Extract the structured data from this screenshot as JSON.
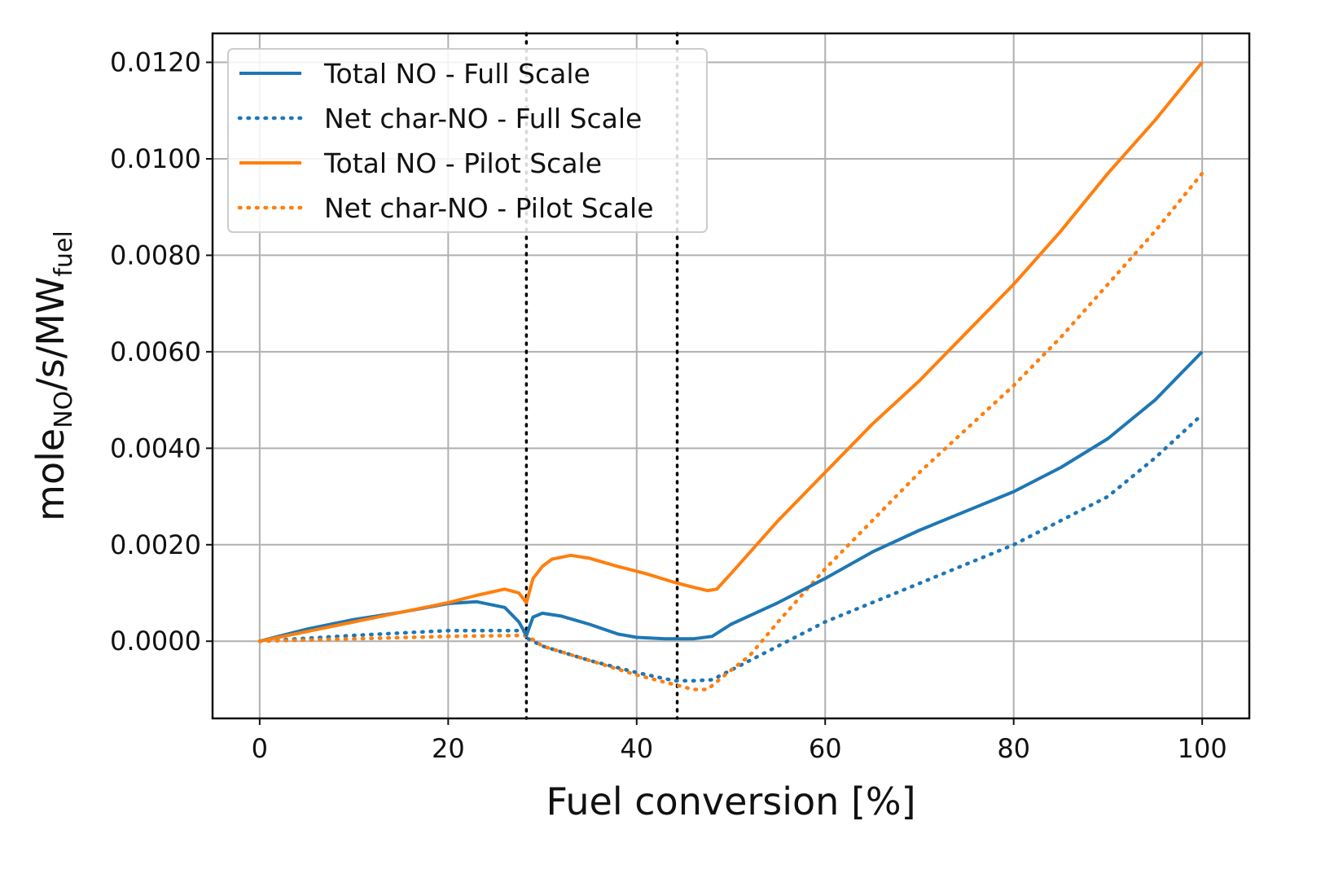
{
  "chart_data": {
    "type": "line",
    "title": "",
    "xlabel": "Fuel conversion [%]",
    "ylabel": {
      "base1": "mole",
      "sub1": "NO",
      "mid": "/s/MW",
      "sub2": "fuel"
    },
    "xlim": [
      -5,
      105
    ],
    "ylim": [
      -0.0016,
      0.0126
    ],
    "xticks": [
      0,
      20,
      40,
      60,
      80,
      100
    ],
    "xtick_labels": [
      "0",
      "20",
      "40",
      "60",
      "80",
      "100"
    ],
    "yticks": [
      0.0,
      0.002,
      0.004,
      0.006,
      0.008,
      0.01,
      0.012
    ],
    "ytick_labels": [
      "0.0000",
      "0.0020",
      "0.0040",
      "0.0060",
      "0.0080",
      "0.0100",
      "0.0120"
    ],
    "grid": true,
    "legend_position": "top-left",
    "vertical_markers": [
      28.3,
      44.3
    ],
    "colors": {
      "full": "#1f77b4",
      "pilot": "#ff7f0e",
      "marker": "#000000"
    },
    "series": [
      {
        "name": "Total NO - Full Scale",
        "style": "solid",
        "color": "#1f77b4",
        "x": [
          0,
          5,
          10,
          15,
          20,
          23,
          26,
          27.5,
          28.3,
          29,
          30,
          32,
          35,
          38,
          40,
          43,
          46,
          48,
          50,
          55,
          60,
          65,
          70,
          75,
          80,
          85,
          90,
          95,
          100
        ],
        "y": [
          0,
          0.00025,
          0.00045,
          0.0006,
          0.00078,
          0.00082,
          0.0007,
          0.0004,
          0.00012,
          0.0005,
          0.00058,
          0.00052,
          0.00035,
          0.00015,
          8e-05,
          5e-05,
          5e-05,
          0.0001,
          0.00035,
          0.0008,
          0.0013,
          0.00185,
          0.0023,
          0.0027,
          0.0031,
          0.0036,
          0.0042,
          0.005,
          0.006
        ]
      },
      {
        "name": "Net char-NO - Full Scale",
        "style": "dotted",
        "color": "#1f77b4",
        "x": [
          0,
          10,
          20,
          28,
          28.5,
          30,
          35,
          40,
          44,
          46,
          48,
          50,
          55,
          60,
          70,
          80,
          90,
          95,
          100
        ],
        "y": [
          0,
          0.00012,
          0.00022,
          0.00022,
          5e-05,
          -0.0001,
          -0.0004,
          -0.00065,
          -0.00082,
          -0.00082,
          -0.0008,
          -0.0006,
          -0.0001,
          0.0004,
          0.0012,
          0.002,
          0.003,
          0.0038,
          0.0047
        ]
      },
      {
        "name": "Total NO - Pilot Scale",
        "style": "solid",
        "color": "#ff7f0e",
        "x": [
          0,
          5,
          10,
          15,
          20,
          23,
          26,
          27.5,
          28.3,
          29,
          30,
          31,
          33,
          35,
          38,
          41,
          44,
          46,
          47.5,
          48.5,
          50,
          55,
          60,
          65,
          70,
          75,
          80,
          85,
          90,
          95,
          100
        ],
        "y": [
          0,
          0.0002,
          0.0004,
          0.0006,
          0.0008,
          0.00095,
          0.00108,
          0.001,
          0.0008,
          0.0013,
          0.00155,
          0.0017,
          0.00178,
          0.00172,
          0.00155,
          0.0014,
          0.00122,
          0.00112,
          0.00105,
          0.00108,
          0.0014,
          0.0025,
          0.0035,
          0.0045,
          0.0054,
          0.0064,
          0.0074,
          0.0085,
          0.0097,
          0.0108,
          0.012
        ]
      },
      {
        "name": "Net char-NO - Pilot Scale",
        "style": "dotted",
        "color": "#ff7f0e",
        "x": [
          0,
          10,
          20,
          28,
          28.5,
          30,
          35,
          40,
          44,
          46,
          47.5,
          50,
          52,
          55,
          60,
          65,
          70,
          75,
          80,
          85,
          90,
          95,
          100
        ],
        "y": [
          0,
          5e-05,
          0.0001,
          0.00012,
          0.0001,
          -0.0001,
          -0.0004,
          -0.0007,
          -0.0009,
          -0.001,
          -0.001,
          -0.0006,
          -0.0003,
          0.0004,
          0.0015,
          0.0025,
          0.0035,
          0.0044,
          0.0053,
          0.0063,
          0.0074,
          0.0085,
          0.0097
        ]
      }
    ]
  }
}
